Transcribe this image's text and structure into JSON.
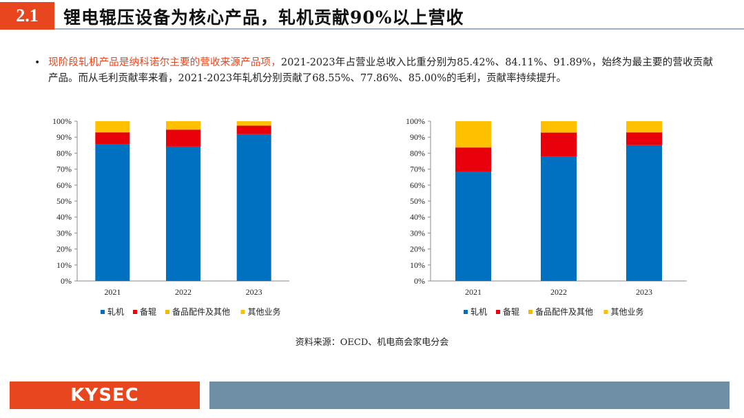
{
  "header": {
    "section_number": "2.1",
    "title": "锂电辊压设备为核心产品，轧机贡献90%以上营收"
  },
  "bullet": {
    "highlight": "现阶段轧机产品是纳科诺尔主要的营收来源产品项，",
    "body": "2021-2023年占营业总收入比重分别为85.42%、84.11%、91.89%，始终为最主要的营收贡献产品。而从毛利贡献率来看，2021-2023年轧机分别贡献了68.55%、77.86%、85.00%的毛利，贡献率持续提升。"
  },
  "chart_data": [
    {
      "type": "bar",
      "stacked": true,
      "categories": [
        "2021",
        "2022",
        "2023"
      ],
      "series": [
        {
          "name": "轧机",
          "values": [
            85.42,
            84.11,
            91.89
          ]
        },
        {
          "name": "备辊",
          "values": [
            7.6,
            10.6,
            5.3
          ]
        },
        {
          "name": "备品配件及其他",
          "values": [
            0.2,
            0.3,
            0.3
          ]
        },
        {
          "name": "其他业务",
          "values": [
            6.78,
            4.99,
            2.51
          ]
        }
      ],
      "ylim": [
        0,
        100
      ],
      "yticks": [
        "0%",
        "10%",
        "20%",
        "30%",
        "40%",
        "50%",
        "60%",
        "70%",
        "80%",
        "90%",
        "100%"
      ],
      "legend_position": "bottom",
      "grid": false
    },
    {
      "type": "bar",
      "stacked": true,
      "categories": [
        "2021",
        "2022",
        "2023"
      ],
      "series": [
        {
          "name": "轧机",
          "values": [
            68.55,
            77.86,
            85.0
          ]
        },
        {
          "name": "备辊",
          "values": [
            15.0,
            15.0,
            8.0
          ]
        },
        {
          "name": "备品配件及其他",
          "values": [
            0.2,
            0.2,
            0.2
          ]
        },
        {
          "name": "其他业务",
          "values": [
            16.25,
            6.94,
            6.8
          ]
        }
      ],
      "ylim": [
        0,
        100
      ],
      "yticks": [
        "0%",
        "10%",
        "20%",
        "30%",
        "40%",
        "50%",
        "60%",
        "70%",
        "80%",
        "90%",
        "100%"
      ],
      "legend_position": "bottom",
      "grid": false
    }
  ],
  "colors": {
    "series": [
      "#0070c0",
      "#e8000b",
      "#f5b800",
      "#ffc000"
    ],
    "accent": "#e8461e",
    "footer_bar": "#6e8fa3"
  },
  "source": "资料来源：OECD、机电商会家电分会",
  "footer": {
    "brand": "KYSEC"
  }
}
